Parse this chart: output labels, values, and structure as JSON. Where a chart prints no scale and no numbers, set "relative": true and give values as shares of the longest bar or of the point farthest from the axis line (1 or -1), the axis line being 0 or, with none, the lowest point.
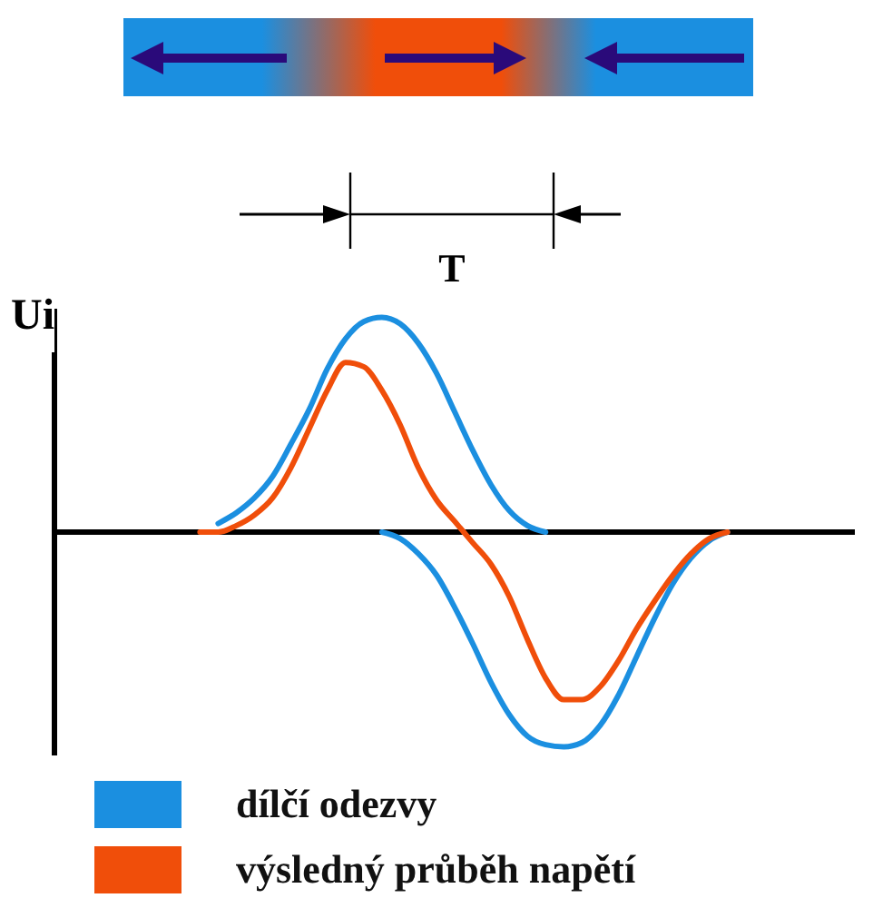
{
  "chart_data": {
    "type": "line",
    "relative": true,
    "ylabel": "Ui",
    "annotations": [
      "T"
    ],
    "legend": "bottom",
    "categories": [
      null,
      null,
      null,
      null,
      null,
      null,
      null,
      null,
      null,
      null,
      null,
      null,
      null,
      null,
      null,
      null,
      null,
      null,
      null,
      null,
      null,
      null,
      null,
      null,
      null,
      null,
      null,
      null,
      null,
      null,
      null,
      null,
      null,
      null,
      null,
      null,
      null,
      null,
      null,
      null,
      null,
      null,
      null,
      null,
      null
    ],
    "series": [
      {
        "name": "dílčí odezvy",
        "color": "#1b8fe0",
        "values": [
          null,
          null,
          null,
          null,
          null,
          null,
          null,
          null,
          null,
          0.04,
          0.09,
          0.16,
          0.26,
          0.41,
          0.57,
          0.76,
          0.9,
          0.98,
          1.0,
          0.97,
          0.88,
          0.74,
          0.56,
          0.38,
          0.22,
          0.1,
          0.03,
          0,
          null,
          null,
          null,
          null,
          null,
          null,
          null,
          null,
          null,
          null,
          null,
          null,
          null,
          null,
          null,
          null,
          null
        ]
      },
      {
        "color": "#1b8fe0",
        "values": [
          null,
          null,
          null,
          null,
          null,
          null,
          null,
          null,
          null,
          null,
          null,
          null,
          null,
          null,
          null,
          null,
          null,
          null,
          0,
          -0.03,
          -0.1,
          -0.2,
          -0.35,
          -0.52,
          -0.7,
          -0.85,
          -0.95,
          -0.99,
          -1.0,
          -0.98,
          -0.9,
          -0.76,
          -0.58,
          -0.4,
          -0.24,
          -0.12,
          -0.04,
          0,
          null,
          null,
          null,
          null,
          null,
          null,
          null
        ]
      },
      {
        "name": "výsledný průběh napětí",
        "color": "#f04e0a",
        "values": [
          null,
          null,
          null,
          null,
          null,
          null,
          null,
          null,
          0,
          0.0,
          0.03,
          0.08,
          0.16,
          0.3,
          0.48,
          0.66,
          0.79,
          0.77,
          0.66,
          0.5,
          0.3,
          0.15,
          0.05,
          -0.05,
          -0.15,
          -0.3,
          -0.5,
          -0.68,
          -0.78,
          -0.78,
          -0.72,
          -0.6,
          -0.45,
          -0.32,
          -0.2,
          -0.1,
          -0.03,
          0,
          null,
          null,
          null,
          null,
          null,
          null,
          null
        ]
      }
    ]
  }
}
